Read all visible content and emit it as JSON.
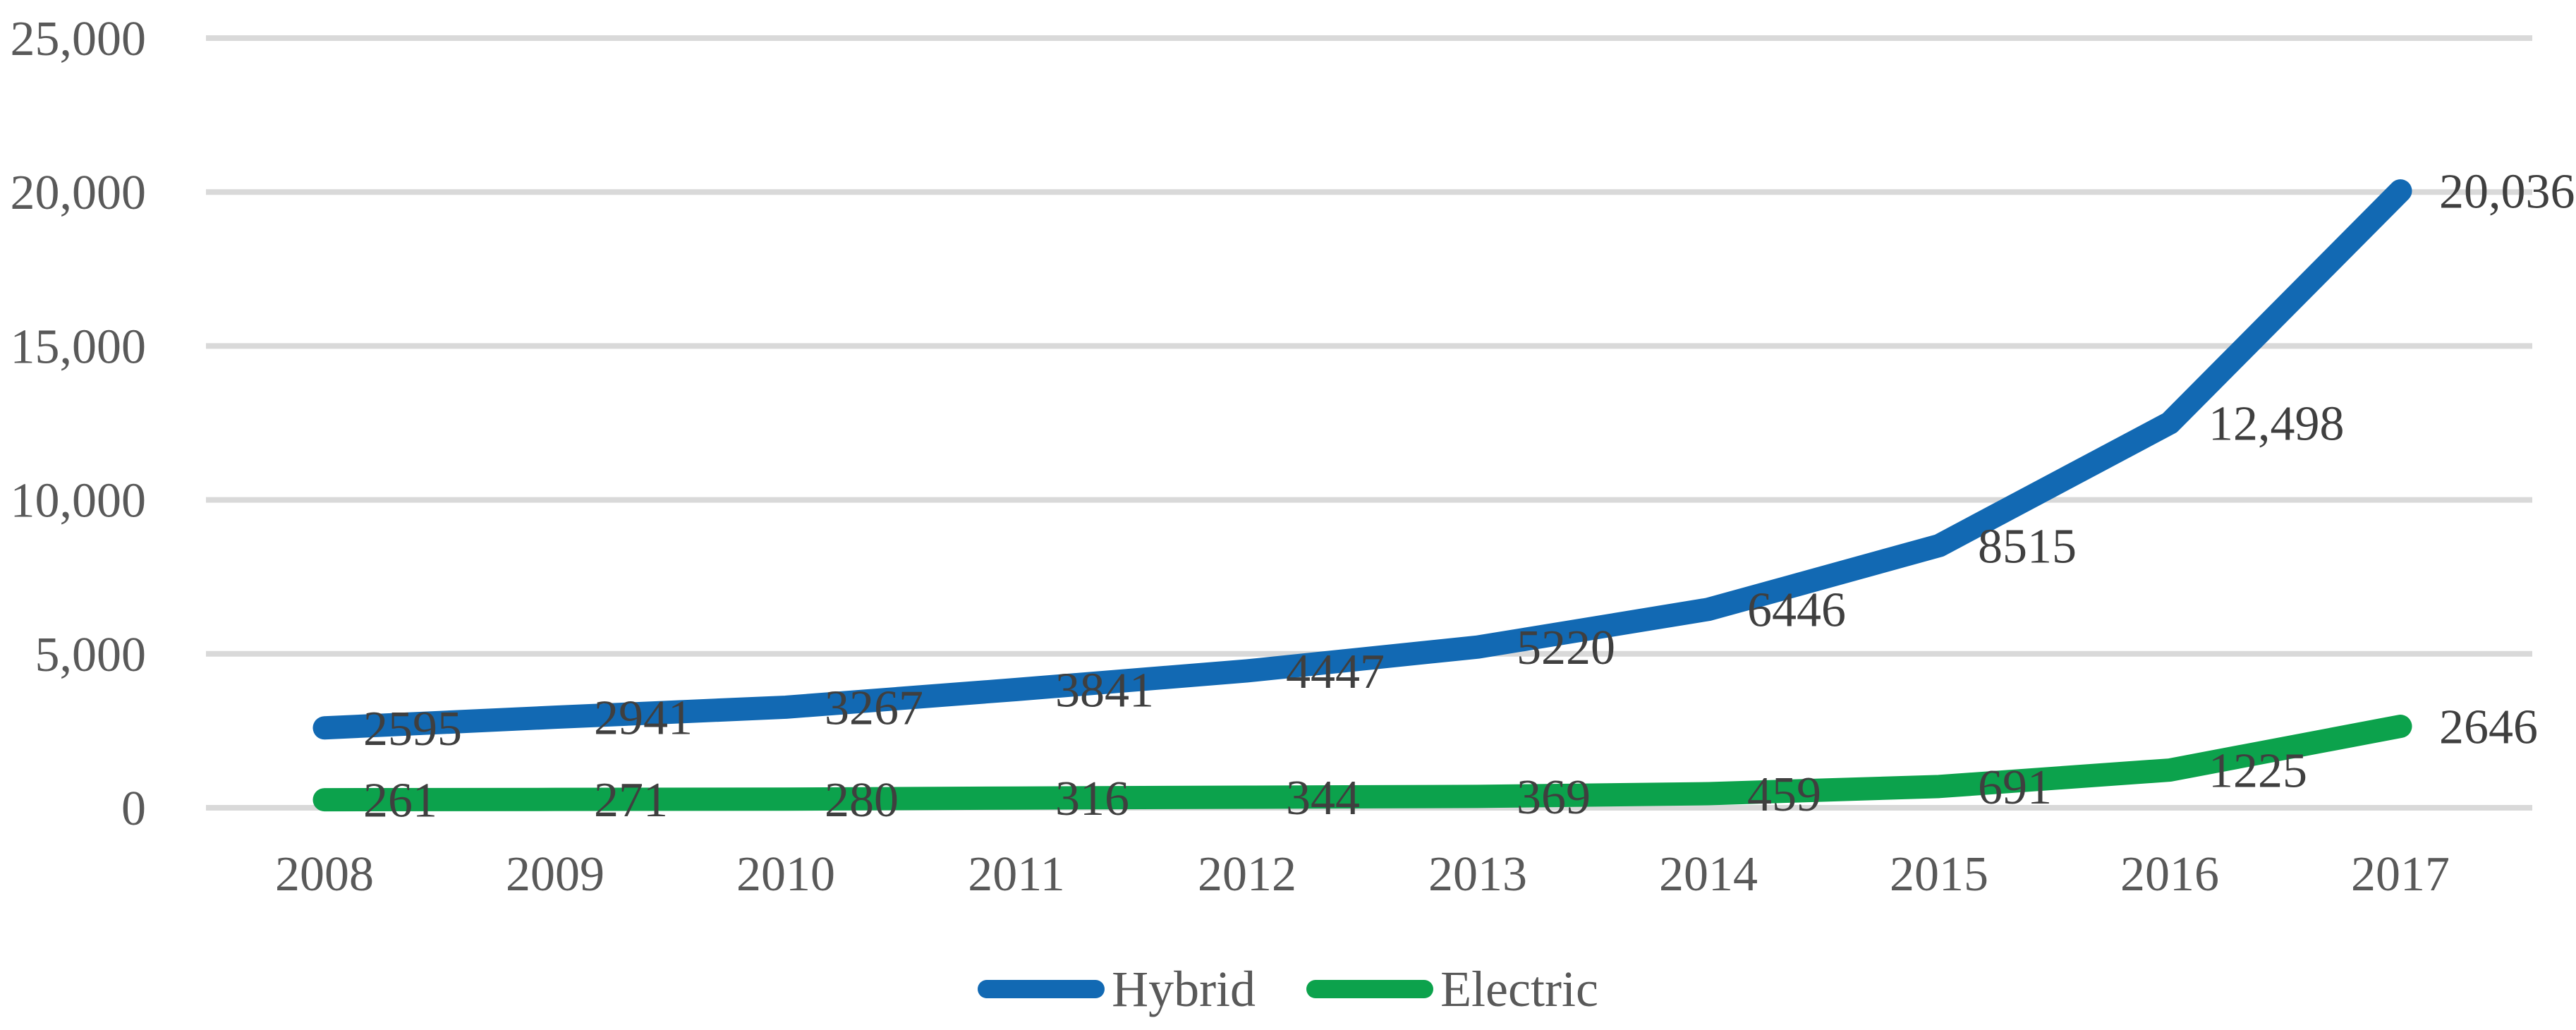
{
  "chart_data": {
    "type": "line",
    "title": "",
    "categories": [
      "2008",
      "2009",
      "2010",
      "2011",
      "2012",
      "2013",
      "2014",
      "2015",
      "2016",
      "2017"
    ],
    "series": [
      {
        "name": "Hybrid",
        "color": "#1269B3",
        "values": [
          2595,
          2941,
          3267,
          3841,
          4447,
          5220,
          6446,
          8515,
          12498,
          20036
        ],
        "labels": [
          "2595",
          "2941",
          "3267",
          "3841",
          "4447",
          "5220",
          "6446",
          "8515",
          "12,498",
          "20,036"
        ]
      },
      {
        "name": "Electric",
        "color": "#0CA24C",
        "values": [
          261,
          271,
          280,
          316,
          344,
          369,
          459,
          691,
          1225,
          2646
        ],
        "labels": [
          "261",
          "271",
          "280",
          "316",
          "344",
          "369",
          "459",
          "691",
          "1225",
          "2646"
        ]
      }
    ],
    "y_axis": {
      "min": 0,
      "max": 25000,
      "tick_values": [
        0,
        5000,
        10000,
        15000,
        20000,
        25000
      ],
      "tick_labels": [
        "0",
        "5,000",
        "10,000",
        "15,000",
        "20,000",
        "25,000"
      ]
    },
    "grid": true,
    "legend_position": "bottom",
    "data_label_position": "right"
  },
  "styles": {
    "grid_color": "#D9D9D9",
    "tick_text_color": "#595959",
    "data_label_color": "#3F3F3F",
    "background": "#FFFFFF"
  }
}
